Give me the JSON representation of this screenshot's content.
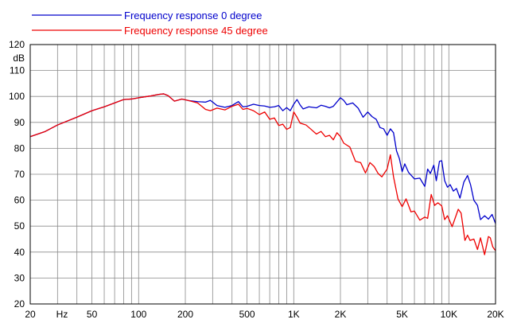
{
  "chart_data": {
    "type": "line",
    "title": "",
    "xlabel": "Hz",
    "ylabel": "dB",
    "x_scale": "log",
    "xlim": [
      20,
      20000
    ],
    "ylim": [
      20,
      120
    ],
    "grid": true,
    "legend_position": "top",
    "x_ticks": [
      {
        "value": 20,
        "label": "20"
      },
      {
        "value": 50,
        "label": "50"
      },
      {
        "value": 100,
        "label": "100"
      },
      {
        "value": 200,
        "label": "200"
      },
      {
        "value": 500,
        "label": "500"
      },
      {
        "value": 1000,
        "label": "1K"
      },
      {
        "value": 2000,
        "label": "2K"
      },
      {
        "value": 5000,
        "label": "5K"
      },
      {
        "value": 10000,
        "label": "10K"
      },
      {
        "value": 20000,
        "label": "20K"
      }
    ],
    "y_ticks": [
      20,
      30,
      40,
      50,
      60,
      70,
      80,
      90,
      100,
      110,
      120
    ],
    "series": [
      {
        "name": "Frequency response 0 degree",
        "color": "#0000cc",
        "points": [
          [
            20,
            84.5
          ],
          [
            25,
            86.5
          ],
          [
            30,
            89
          ],
          [
            40,
            92
          ],
          [
            50,
            94.5
          ],
          [
            60,
            96
          ],
          [
            70,
            97.5
          ],
          [
            80,
            98.8
          ],
          [
            90,
            99
          ],
          [
            100,
            99.5
          ],
          [
            120,
            100.2
          ],
          [
            135,
            100.8
          ],
          [
            145,
            101
          ],
          [
            155,
            100.3
          ],
          [
            170,
            98.2
          ],
          [
            190,
            99
          ],
          [
            210,
            98.4
          ],
          [
            240,
            98
          ],
          [
            270,
            97.8
          ],
          [
            290,
            98.5
          ],
          [
            320,
            96.5
          ],
          [
            360,
            95.8
          ],
          [
            400,
            96.5
          ],
          [
            440,
            98
          ],
          [
            470,
            96
          ],
          [
            500,
            96.2
          ],
          [
            550,
            97
          ],
          [
            600,
            96.5
          ],
          [
            650,
            96.3
          ],
          [
            700,
            95.8
          ],
          [
            750,
            96
          ],
          [
            800,
            96.5
          ],
          [
            850,
            94.5
          ],
          [
            900,
            95.7
          ],
          [
            950,
            94.5
          ],
          [
            1000,
            97
          ],
          [
            1050,
            98.8
          ],
          [
            1100,
            96.7
          ],
          [
            1150,
            95.2
          ],
          [
            1250,
            96
          ],
          [
            1400,
            95.6
          ],
          [
            1500,
            96.6
          ],
          [
            1600,
            96.2
          ],
          [
            1700,
            95.6
          ],
          [
            1800,
            96.2
          ],
          [
            1950,
            98.7
          ],
          [
            2000,
            99.5
          ],
          [
            2100,
            98.5
          ],
          [
            2200,
            96.8
          ],
          [
            2400,
            97.5
          ],
          [
            2600,
            95.5
          ],
          [
            2800,
            92
          ],
          [
            3000,
            94
          ],
          [
            3200,
            92.2
          ],
          [
            3400,
            91.2
          ],
          [
            3600,
            88
          ],
          [
            3800,
            87.5
          ],
          [
            4000,
            85
          ],
          [
            4200,
            87.5
          ],
          [
            4400,
            86
          ],
          [
            4600,
            79
          ],
          [
            4800,
            76
          ],
          [
            5000,
            71
          ],
          [
            5200,
            74
          ],
          [
            5500,
            70.7
          ],
          [
            6000,
            68.2
          ],
          [
            6500,
            68.5
          ],
          [
            7000,
            65.3
          ],
          [
            7300,
            72
          ],
          [
            7600,
            70.3
          ],
          [
            8000,
            73.5
          ],
          [
            8300,
            67.5
          ],
          [
            8700,
            75
          ],
          [
            9000,
            75.2
          ],
          [
            9400,
            67.5
          ],
          [
            9800,
            65
          ],
          [
            10200,
            66
          ],
          [
            10700,
            63.5
          ],
          [
            11200,
            64.5
          ],
          [
            11800,
            60.8
          ],
          [
            12500,
            67
          ],
          [
            13200,
            69.5
          ],
          [
            13800,
            66
          ],
          [
            14500,
            60
          ],
          [
            15300,
            58
          ],
          [
            16000,
            52.5
          ],
          [
            17000,
            54
          ],
          [
            18000,
            52.7
          ],
          [
            19000,
            54.5
          ],
          [
            20000,
            51
          ]
        ]
      },
      {
        "name": "Frequency response 45 degree",
        "color": "#ee0000",
        "points": [
          [
            20,
            84.5
          ],
          [
            25,
            86.5
          ],
          [
            30,
            89
          ],
          [
            40,
            92
          ],
          [
            50,
            94.5
          ],
          [
            60,
            96
          ],
          [
            70,
            97.5
          ],
          [
            80,
            98.8
          ],
          [
            90,
            99
          ],
          [
            100,
            99.5
          ],
          [
            120,
            100.2
          ],
          [
            135,
            100.8
          ],
          [
            145,
            101
          ],
          [
            155,
            100.3
          ],
          [
            170,
            98.2
          ],
          [
            190,
            99
          ],
          [
            210,
            98.4
          ],
          [
            240,
            97.5
          ],
          [
            270,
            95
          ],
          [
            290,
            94.5
          ],
          [
            320,
            95.5
          ],
          [
            360,
            94.8
          ],
          [
            400,
            96.2
          ],
          [
            440,
            97
          ],
          [
            470,
            95
          ],
          [
            500,
            95.4
          ],
          [
            550,
            94.5
          ],
          [
            600,
            93
          ],
          [
            650,
            94
          ],
          [
            700,
            91.2
          ],
          [
            750,
            91.7
          ],
          [
            800,
            88.8
          ],
          [
            850,
            89.3
          ],
          [
            900,
            87.3
          ],
          [
            950,
            88
          ],
          [
            1000,
            94
          ],
          [
            1050,
            92
          ],
          [
            1100,
            89.7
          ],
          [
            1200,
            89
          ],
          [
            1300,
            87.2
          ],
          [
            1400,
            85.5
          ],
          [
            1500,
            86.5
          ],
          [
            1600,
            84.5
          ],
          [
            1700,
            85
          ],
          [
            1800,
            83.3
          ],
          [
            1900,
            86
          ],
          [
            2000,
            84.5
          ],
          [
            2100,
            82
          ],
          [
            2300,
            80.5
          ],
          [
            2500,
            75
          ],
          [
            2700,
            74.5
          ],
          [
            2900,
            70.5
          ],
          [
            3100,
            74.5
          ],
          [
            3300,
            73
          ],
          [
            3500,
            70.3
          ],
          [
            3700,
            69
          ],
          [
            4000,
            72
          ],
          [
            4200,
            77.5
          ],
          [
            4400,
            69
          ],
          [
            4700,
            60.5
          ],
          [
            5000,
            57.5
          ],
          [
            5300,
            60.5
          ],
          [
            5700,
            55.5
          ],
          [
            6000,
            55.8
          ],
          [
            6500,
            52.3
          ],
          [
            7000,
            53.5
          ],
          [
            7300,
            53
          ],
          [
            7700,
            62.2
          ],
          [
            8100,
            58
          ],
          [
            8500,
            59
          ],
          [
            9000,
            57.8
          ],
          [
            9400,
            52.5
          ],
          [
            9800,
            54
          ],
          [
            10500,
            49.8
          ],
          [
            11000,
            53.2
          ],
          [
            11500,
            56.5
          ],
          [
            12000,
            55
          ],
          [
            12700,
            44.5
          ],
          [
            13200,
            46.5
          ],
          [
            13700,
            44.5
          ],
          [
            14500,
            45
          ],
          [
            15300,
            41
          ],
          [
            16000,
            45.5
          ],
          [
            17000,
            39
          ],
          [
            18000,
            46
          ],
          [
            18500,
            45.5
          ],
          [
            19200,
            42
          ],
          [
            20000,
            40.5
          ]
        ]
      }
    ]
  }
}
